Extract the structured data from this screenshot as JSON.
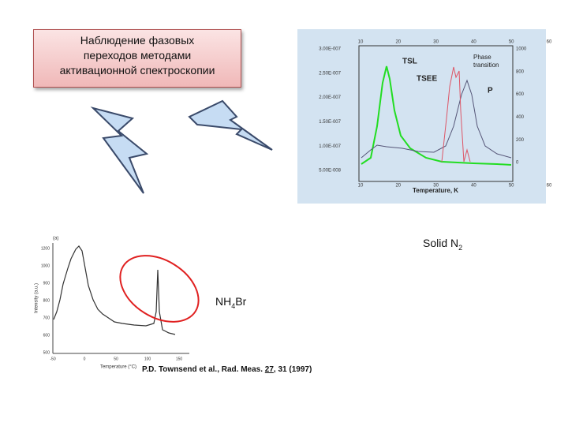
{
  "callout": {
    "lines": [
      "Наблюдение фазовых",
      "переходов методами",
      "активационной спектроскопии"
    ]
  },
  "top_figure": {
    "legend_labels": [
      "TSL",
      "TSEE",
      "P"
    ],
    "phase_label": [
      "Phase",
      "transition"
    ],
    "x_label": "Temperature, K",
    "x_ticks": [
      "10",
      "20",
      "30",
      "40",
      "50",
      "60"
    ],
    "y_left_ticks": [
      "3.00E-007",
      "2.50E-007",
      "2.00E-007",
      "1.50E-007",
      "1.00E-007",
      "5.00E-008"
    ],
    "y_right_ticks": [
      "1000",
      "800",
      "600",
      "400",
      "200",
      "0"
    ]
  },
  "solid_label": {
    "main": "Solid N",
    "sub": "2"
  },
  "nh4br_label": {
    "main": "NH",
    "sub": "4",
    "tail": "Br"
  },
  "bottom_figure": {
    "panel": "(a)",
    "y_label": "Intensity (a.u.)",
    "x_label": "Temperature (°C)",
    "y_ticks": [
      "1200",
      "1000",
      "900",
      "800",
      "700",
      "600",
      "500"
    ],
    "x_ticks": [
      "-50",
      "0",
      "50",
      "100",
      "150"
    ],
    "citation": {
      "before": "P.D. Townsend et al., Rad. Meas. ",
      "volume": "27",
      "after": ", 31 (1997)"
    }
  }
}
